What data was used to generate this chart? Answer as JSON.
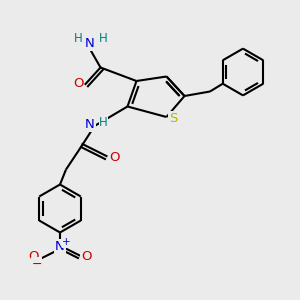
{
  "background_color": "#ebebeb",
  "atom_colors": {
    "C": "#000000",
    "N": "#0000cc",
    "O": "#cc0000",
    "S": "#b8b800",
    "H": "#008080"
  },
  "bond_color": "#000000",
  "bond_width": 1.5,
  "figsize": [
    3.0,
    3.0
  ],
  "dpi": 100
}
